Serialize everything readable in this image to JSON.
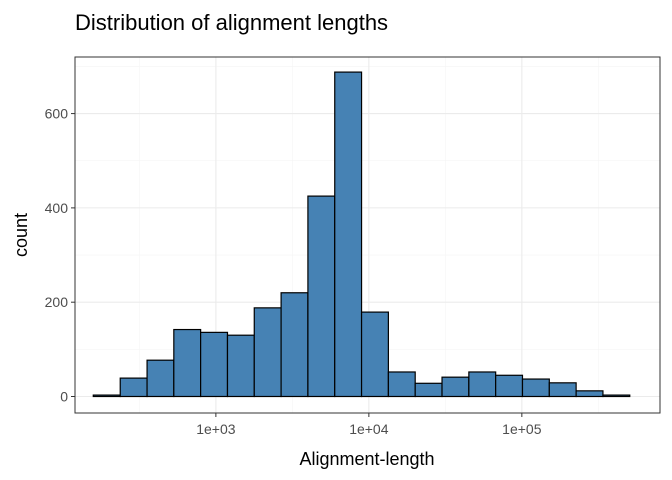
{
  "chart_data": {
    "type": "bar",
    "title": "Distribution of alignment lengths",
    "xlabel": "Alignment-length",
    "ylabel": "count",
    "x_scale": "log10",
    "xlim": [
      120,
      800000
    ],
    "ylim": [
      -35,
      720
    ],
    "x_ticks": [
      {
        "value": 1000,
        "label": "1e+03"
      },
      {
        "value": 10000,
        "label": "1e+04"
      },
      {
        "value": 100000,
        "label": "1e+05"
      }
    ],
    "y_ticks": [
      {
        "value": 0,
        "label": "0"
      },
      {
        "value": 200,
        "label": "200"
      },
      {
        "value": 400,
        "label": "400"
      },
      {
        "value": 600,
        "label": "600"
      }
    ],
    "bins": [
      {
        "start": 158,
        "end": 237,
        "count": 3
      },
      {
        "start": 237,
        "end": 355,
        "count": 39
      },
      {
        "start": 355,
        "end": 531,
        "count": 77
      },
      {
        "start": 531,
        "end": 795,
        "count": 142
      },
      {
        "start": 795,
        "end": 1191,
        "count": 136
      },
      {
        "start": 1191,
        "end": 1782,
        "count": 130
      },
      {
        "start": 1782,
        "end": 2669,
        "count": 188
      },
      {
        "start": 2669,
        "end": 3996,
        "count": 220
      },
      {
        "start": 3996,
        "end": 5984,
        "count": 425
      },
      {
        "start": 5984,
        "end": 8960,
        "count": 688
      },
      {
        "start": 8960,
        "end": 13416,
        "count": 179
      },
      {
        "start": 13416,
        "end": 20089,
        "count": 52
      },
      {
        "start": 20089,
        "end": 30079,
        "count": 28
      },
      {
        "start": 30079,
        "end": 45038,
        "count": 41
      },
      {
        "start": 45038,
        "end": 67437,
        "count": 52
      },
      {
        "start": 67437,
        "end": 100975,
        "count": 45
      },
      {
        "start": 100975,
        "end": 151193,
        "count": 37
      },
      {
        "start": 151193,
        "end": 226387,
        "count": 29
      },
      {
        "start": 226387,
        "end": 338975,
        "count": 12
      },
      {
        "start": 338975,
        "end": 507557,
        "count": 3
      }
    ],
    "fill_color": "#4682b4",
    "outline_color": "#000000",
    "grid": true,
    "legend": "none"
  }
}
